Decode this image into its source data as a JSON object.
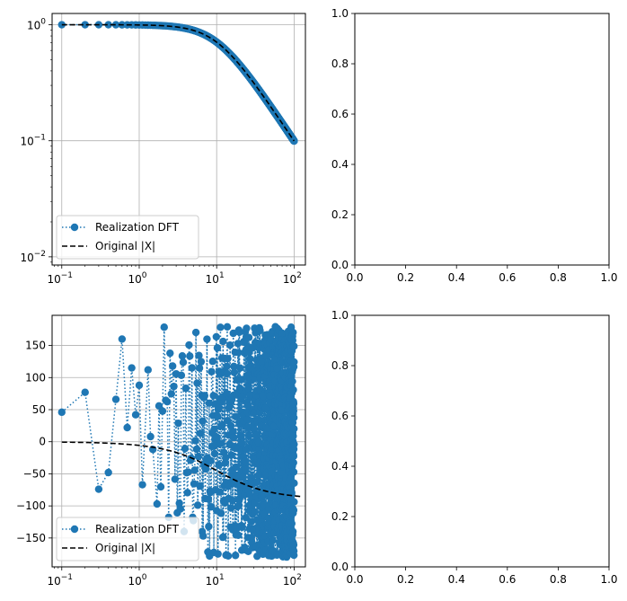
{
  "colors": {
    "realization": "#1f77b4",
    "original": "#000000",
    "grid": "#b0b0b0",
    "frame": "#000000"
  },
  "legend": {
    "realization_label": "Realization DFT",
    "original_label": "Original |X|",
    "placement": "lower left"
  },
  "chart_data": [
    {
      "type": "line",
      "panel": "top-left",
      "xscale": "log",
      "yscale": "log",
      "xlim": [
        0.075,
        140
      ],
      "ylim": [
        0.0085,
        1.25
      ],
      "grid": true,
      "legend_placement": "lower left",
      "x_tick_labels": [
        "10^-1",
        "10^0",
        "10^1",
        "10^2"
      ],
      "y_tick_labels": [
        "10^-2",
        "10^-1",
        "10^0"
      ],
      "series": [
        {
          "name": "Realization DFT",
          "style": "dotted line with circle markers",
          "function": "magnitude of 1/(1+j*0.1f) sampled at f = 0.1..100, step 0.1"
        },
        {
          "name": "Original |X|",
          "style": "dashed black",
          "function": "1/sqrt(1+(0.1f)^2)"
        }
      ],
      "sample_points": [
        [
          0.1,
          0.99995
        ],
        [
          1,
          0.995
        ],
        [
          10,
          0.707
        ],
        [
          100,
          0.0995
        ]
      ]
    },
    {
      "type": "empty",
      "panel": "top-right",
      "xlim": [
        0,
        1
      ],
      "ylim": [
        0,
        1
      ],
      "x_tick_labels": [
        "0.0",
        "0.2",
        "0.4",
        "0.6",
        "0.8",
        "1.0"
      ],
      "y_tick_labels": [
        "0.0",
        "0.2",
        "0.4",
        "0.6",
        "0.8",
        "1.0"
      ]
    },
    {
      "type": "line",
      "panel": "bottom-left",
      "xscale": "log",
      "xlim": [
        0.075,
        140
      ],
      "ylim": [
        -195,
        197
      ],
      "grid": true,
      "legend_placement": "lower left",
      "x_tick_labels": [
        "10^-1",
        "10^0",
        "10^1",
        "10^2"
      ],
      "y_tick_labels": [
        "−150",
        "−100",
        "−50",
        "0",
        "50",
        "100",
        "150"
      ],
      "series": [
        {
          "name": "Realization DFT",
          "style": "dotted line with circle markers",
          "note": "phase in degrees, wraps between -180 and 180"
        },
        {
          "name": "Original |X|",
          "style": "dashed black",
          "function": "-atan(0.1f) in degrees"
        }
      ],
      "labeled_points": [
        [
          0.1,
          46
        ],
        [
          0.2,
          77
        ],
        [
          0.3,
          -74
        ],
        [
          0.4,
          -48
        ],
        [
          0.5,
          66
        ],
        [
          0.6,
          160
        ],
        [
          0.7,
          22
        ],
        [
          0.8,
          115
        ],
        [
          0.9,
          42
        ],
        [
          1.0,
          88
        ],
        [
          1.1,
          -67
        ],
        [
          1.3,
          112
        ],
        [
          1.4,
          8
        ],
        [
          1.5,
          -12
        ],
        [
          1.7,
          -97
        ]
      ]
    },
    {
      "type": "empty",
      "panel": "bottom-right",
      "xlim": [
        0,
        1
      ],
      "ylim": [
        0,
        1
      ],
      "x_tick_labels": [
        "0.0",
        "0.2",
        "0.4",
        "0.6",
        "0.8",
        "1.0"
      ],
      "y_tick_labels": [
        "0.0",
        "0.2",
        "0.4",
        "0.6",
        "0.8",
        "1.0"
      ]
    }
  ]
}
